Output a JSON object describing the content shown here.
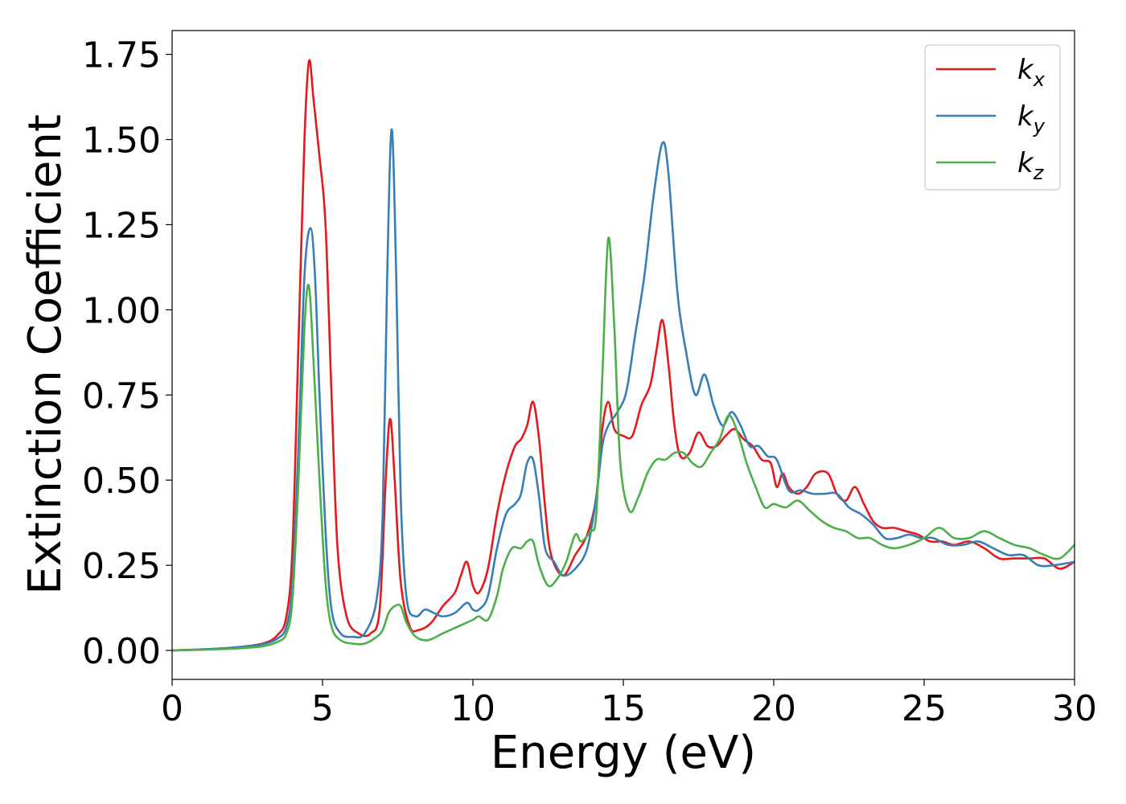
{
  "chart_data": {
    "type": "line",
    "title": "",
    "xlabel": "Energy (eV)",
    "ylabel": "Extinction Coefficient",
    "xlim": [
      0,
      30
    ],
    "ylim": [
      -0.085,
      1.82
    ],
    "xticks": [
      0,
      5,
      10,
      15,
      20,
      25,
      30
    ],
    "xtick_labels": [
      "0",
      "5",
      "10",
      "15",
      "20",
      "25",
      "30"
    ],
    "yticks": [
      0.0,
      0.25,
      0.5,
      0.75,
      1.0,
      1.25,
      1.5,
      1.75
    ],
    "ytick_labels": [
      "0.00",
      "0.25",
      "0.50",
      "0.75",
      "1.00",
      "1.25",
      "1.50",
      "1.75"
    ],
    "grid": false,
    "legend_position": "top-right",
    "series": [
      {
        "name": "k_x",
        "legend_base": "k",
        "legend_sub": "x",
        "color": "#e41a1c",
        "x": [
          0,
          1,
          2,
          3,
          3.5,
          3.8,
          4.0,
          4.2,
          4.4,
          4.55,
          4.7,
          4.9,
          5.1,
          5.3,
          5.5,
          5.8,
          6.2,
          6.6,
          6.9,
          7.1,
          7.25,
          7.4,
          7.6,
          7.9,
          8.2,
          8.6,
          9.0,
          9.4,
          9.6,
          9.8,
          10.0,
          10.2,
          10.5,
          10.8,
          11.1,
          11.4,
          11.6,
          11.8,
          12.0,
          12.2,
          12.4,
          12.6,
          13.0,
          13.4,
          13.8,
          14.1,
          14.3,
          14.5,
          14.7,
          15.0,
          15.3,
          15.6,
          15.9,
          16.1,
          16.3,
          16.5,
          16.7,
          16.9,
          17.2,
          17.5,
          17.8,
          18.1,
          18.4,
          18.7,
          19.0,
          19.3,
          19.6,
          19.9,
          20.1,
          20.3,
          20.5,
          20.8,
          21.1,
          21.4,
          21.8,
          22.1,
          22.4,
          22.7,
          23.0,
          23.3,
          23.6,
          24.0,
          24.4,
          24.8,
          25.2,
          25.6,
          26.0,
          26.5,
          27.0,
          27.5,
          28.0,
          28.5,
          29.0,
          29.5,
          30.0
        ],
        "y": [
          0.0,
          0.003,
          0.008,
          0.02,
          0.045,
          0.1,
          0.3,
          0.9,
          1.5,
          1.73,
          1.62,
          1.45,
          1.25,
          0.75,
          0.3,
          0.1,
          0.05,
          0.05,
          0.12,
          0.5,
          0.68,
          0.5,
          0.2,
          0.07,
          0.06,
          0.08,
          0.13,
          0.17,
          0.22,
          0.26,
          0.19,
          0.17,
          0.24,
          0.4,
          0.52,
          0.6,
          0.62,
          0.66,
          0.73,
          0.62,
          0.42,
          0.28,
          0.22,
          0.28,
          0.34,
          0.45,
          0.65,
          0.73,
          0.65,
          0.63,
          0.63,
          0.72,
          0.78,
          0.88,
          0.97,
          0.84,
          0.66,
          0.57,
          0.58,
          0.64,
          0.6,
          0.6,
          0.63,
          0.65,
          0.62,
          0.6,
          0.56,
          0.55,
          0.48,
          0.52,
          0.48,
          0.46,
          0.48,
          0.52,
          0.52,
          0.46,
          0.44,
          0.48,
          0.43,
          0.38,
          0.36,
          0.36,
          0.35,
          0.34,
          0.32,
          0.32,
          0.31,
          0.32,
          0.3,
          0.27,
          0.27,
          0.27,
          0.27,
          0.24,
          0.26
        ]
      },
      {
        "name": "k_y",
        "legend_base": "k",
        "legend_sub": "y",
        "color": "#377eb8",
        "x": [
          0,
          1,
          2,
          3,
          3.5,
          3.8,
          4.0,
          4.2,
          4.4,
          4.6,
          4.75,
          4.9,
          5.1,
          5.3,
          5.6,
          6.0,
          6.4,
          6.8,
          7.0,
          7.15,
          7.3,
          7.45,
          7.6,
          7.8,
          8.1,
          8.4,
          8.7,
          9.0,
          9.4,
          9.8,
          10.0,
          10.2,
          10.5,
          10.8,
          11.1,
          11.4,
          11.6,
          11.8,
          12.0,
          12.2,
          12.4,
          12.7,
          13.0,
          13.4,
          13.8,
          14.1,
          14.3,
          14.5,
          14.8,
          15.1,
          15.4,
          15.7,
          16.0,
          16.3,
          16.5,
          16.8,
          17.1,
          17.4,
          17.7,
          18.0,
          18.3,
          18.6,
          18.9,
          19.2,
          19.5,
          19.8,
          20.1,
          20.5,
          20.9,
          21.3,
          21.7,
          22.1,
          22.5,
          22.9,
          23.3,
          23.7,
          24.1,
          24.5,
          24.9,
          25.3,
          25.8,
          26.3,
          26.8,
          27.3,
          27.8,
          28.3,
          28.8,
          29.3,
          30.0
        ],
        "y": [
          0.0,
          0.003,
          0.008,
          0.018,
          0.035,
          0.07,
          0.2,
          0.6,
          1.1,
          1.24,
          1.1,
          0.75,
          0.35,
          0.12,
          0.05,
          0.04,
          0.05,
          0.15,
          0.4,
          1.1,
          1.53,
          1.1,
          0.45,
          0.15,
          0.1,
          0.12,
          0.11,
          0.1,
          0.11,
          0.14,
          0.12,
          0.12,
          0.16,
          0.3,
          0.4,
          0.43,
          0.46,
          0.55,
          0.56,
          0.45,
          0.3,
          0.26,
          0.22,
          0.24,
          0.3,
          0.45,
          0.6,
          0.66,
          0.7,
          0.76,
          0.93,
          1.1,
          1.33,
          1.49,
          1.4,
          1.05,
          0.87,
          0.75,
          0.81,
          0.72,
          0.66,
          0.7,
          0.66,
          0.6,
          0.6,
          0.57,
          0.56,
          0.47,
          0.47,
          0.46,
          0.46,
          0.46,
          0.42,
          0.4,
          0.37,
          0.33,
          0.33,
          0.34,
          0.33,
          0.33,
          0.31,
          0.31,
          0.32,
          0.3,
          0.28,
          0.28,
          0.25,
          0.25,
          0.26
        ]
      },
      {
        "name": "k_z",
        "legend_base": "k",
        "legend_sub": "z",
        "color": "#4daf4a",
        "x": [
          0,
          1,
          2,
          3,
          3.5,
          3.8,
          4.0,
          4.2,
          4.4,
          4.55,
          4.7,
          4.9,
          5.1,
          5.3,
          5.6,
          6.0,
          6.4,
          6.8,
          7.0,
          7.2,
          7.4,
          7.6,
          7.8,
          8.1,
          8.5,
          9.0,
          9.5,
          10.0,
          10.2,
          10.5,
          10.8,
          11.0,
          11.3,
          11.6,
          11.8,
          12.0,
          12.2,
          12.5,
          12.8,
          13.1,
          13.4,
          13.6,
          13.9,
          14.1,
          14.3,
          14.5,
          14.7,
          14.9,
          15.2,
          15.5,
          15.8,
          16.1,
          16.4,
          16.7,
          17.0,
          17.3,
          17.6,
          17.9,
          18.2,
          18.5,
          18.8,
          19.1,
          19.4,
          19.7,
          20.0,
          20.4,
          20.8,
          21.2,
          21.6,
          22.0,
          22.4,
          22.8,
          23.2,
          23.6,
          24.0,
          24.5,
          25.0,
          25.5,
          26.0,
          26.5,
          27.0,
          27.5,
          28.0,
          28.5,
          29.0,
          29.5,
          30.0
        ],
        "y": [
          0.0,
          0.002,
          0.005,
          0.012,
          0.025,
          0.05,
          0.15,
          0.5,
          0.95,
          1.07,
          0.85,
          0.5,
          0.2,
          0.07,
          0.03,
          0.02,
          0.02,
          0.04,
          0.06,
          0.11,
          0.13,
          0.13,
          0.08,
          0.04,
          0.03,
          0.05,
          0.07,
          0.09,
          0.1,
          0.09,
          0.16,
          0.24,
          0.3,
          0.3,
          0.32,
          0.32,
          0.25,
          0.19,
          0.21,
          0.26,
          0.34,
          0.32,
          0.35,
          0.4,
          0.8,
          1.21,
          0.95,
          0.55,
          0.41,
          0.45,
          0.52,
          0.56,
          0.56,
          0.58,
          0.58,
          0.55,
          0.54,
          0.58,
          0.62,
          0.69,
          0.64,
          0.55,
          0.48,
          0.42,
          0.43,
          0.42,
          0.44,
          0.41,
          0.38,
          0.36,
          0.35,
          0.33,
          0.33,
          0.31,
          0.3,
          0.31,
          0.33,
          0.36,
          0.33,
          0.33,
          0.35,
          0.33,
          0.31,
          0.3,
          0.28,
          0.27,
          0.31
        ]
      }
    ]
  }
}
